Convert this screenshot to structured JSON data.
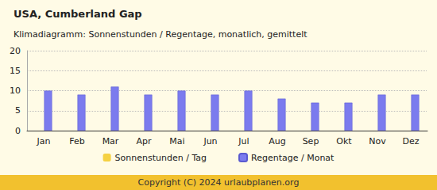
{
  "chart_data": {
    "type": "bar",
    "title": "USA, Cumberland Gap",
    "subtitle": "Klimadiagramm: Sonnenstunden / Regentage, monatlich, gemittelt",
    "categories": [
      "Jan",
      "Feb",
      "Mar",
      "Apr",
      "Mai",
      "Jun",
      "Jul",
      "Aug",
      "Sep",
      "Okt",
      "Nov",
      "Dez"
    ],
    "series": [
      {
        "name": "Sonnenstunden / Tag",
        "color": "#f5d142",
        "values": [
          0,
          0,
          0,
          0,
          0,
          0,
          0,
          0,
          0,
          0,
          0,
          0
        ]
      },
      {
        "name": "Regentage / Monat",
        "color": "#7b7bee",
        "values": [
          10,
          9,
          11,
          9,
          10,
          9,
          10,
          8,
          7,
          7,
          9,
          9
        ]
      }
    ],
    "ylim": [
      0,
      20
    ],
    "yticks": [
      0,
      5,
      10,
      15,
      20
    ],
    "grid": true,
    "legend": "bottom",
    "annotations": [
      "Copyright (C) 2024 urlaubplanen.org"
    ]
  }
}
